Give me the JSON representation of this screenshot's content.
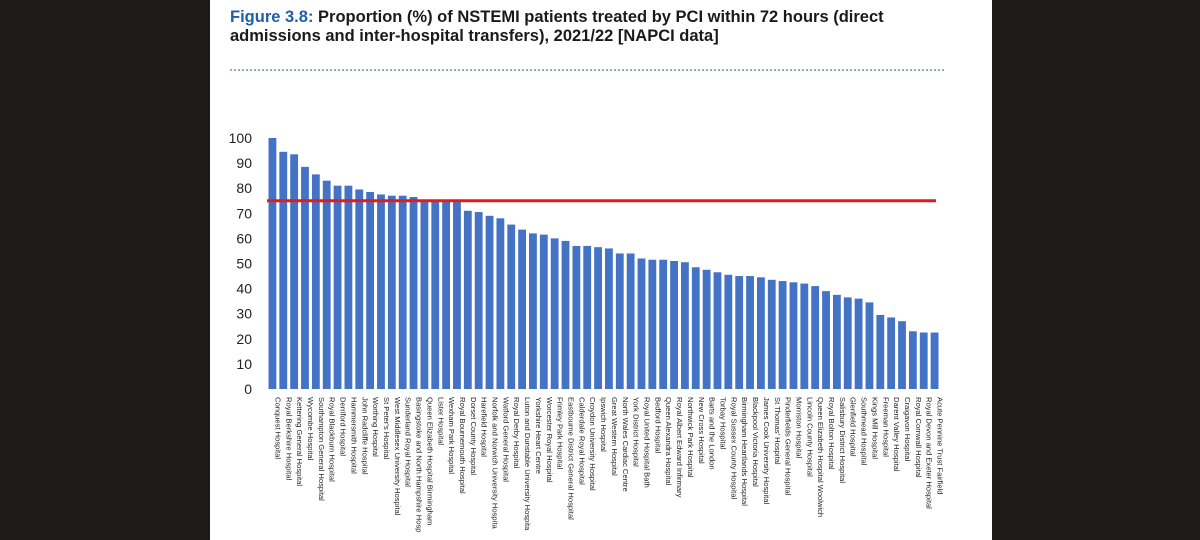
{
  "figure": {
    "number": "Figure 3.8:",
    "title": "Proportion (%) of NSTEMI patients treated by PCI within 72 hours (direct admissions and inter-hospital transfers), 2021/22 [NAPCI data]"
  },
  "chart_data": {
    "type": "bar",
    "title": "",
    "xlabel": "",
    "ylabel": "",
    "ylim": [
      0,
      100
    ],
    "yticks": [
      0,
      10,
      20,
      30,
      40,
      50,
      60,
      70,
      80,
      90,
      100
    ],
    "grid": false,
    "legend": "none",
    "bar_color": "#4472c4",
    "reference_line": {
      "value": 75,
      "color": "#e31b1b"
    },
    "categories": [
      "Conquest Hospital",
      "Royal Berkshire Hospital",
      "Kettering General Hospital",
      "Wycombe Hospital",
      "Southampton General Hospital",
      "Royal Blackburn Hospital",
      "Derriford Hospital",
      "Hammersmith Hospital",
      "John Radcliffe Hospital",
      "Worthing Hospital",
      "St Peter's Hospital",
      "West Middlesex University Hospital",
      "Sunderland Royal Hospital",
      "Basingstoke and North Hampshire Hosp",
      "Queen Elizabeth Hospital Birmingham",
      "Lister Hospital",
      "Wexham Park Hospital",
      "Royal Bournemouth Hospital",
      "Dorset County Hospital",
      "Harefield Hospital",
      "Norfolk and Norwich University Hospita",
      "Watford General Hospital",
      "Royal Derby Hospital",
      "Luton and Dunstable University Hospita",
      "Yorkshire Heart Centre",
      "Worcester Royal Hospital",
      "Frimley Park Hospital",
      "Eastbourne District General Hospital",
      "Calderdale Royal Hospital",
      "Croydon University Hospital",
      "Ipswich Hospital",
      "Great Western Hospital",
      "North Wales Cardiac Centre",
      "York District Hospital",
      "Royal United Hospital Bath",
      "Bedford Hospital",
      "Queen Alexandra Hospital",
      "Royal Albert Edward Infirmary",
      "Northwick Park Hospital",
      "New Cross Hospital",
      "Barts and the London",
      "Torbay Hospital",
      "Royal Sussex County Hospital",
      "Birmingham Heartlands Hospital",
      "Blackpool Victoria Hospital",
      "James Cook University Hospital",
      "St Thomas' Hospital",
      "Pinderfields General Hospital",
      "Morriston Hospital",
      "Lincoln County Hospital",
      "Queen Elizabeth Hospital Woolwich",
      "Royal Bolton Hospital",
      "Salisbury District Hospital",
      "Glenfield Hospital",
      "Southmead Hospital",
      "Kings Mill Hospital",
      "Freeman Hospital",
      "Darent Valley Hospital",
      "Craigavon Hospital",
      "Royal Cornwall Hospital",
      "Royal Devon and Exeter Hospital",
      "Acute Pennine Trust Fairfield"
    ],
    "values": [
      100,
      94.5,
      93.5,
      88.5,
      85.5,
      83,
      81,
      81,
      79.5,
      78.5,
      77.5,
      77,
      77,
      76.5,
      75,
      75,
      74.5,
      74.5,
      71,
      70.5,
      69,
      68,
      65.5,
      63.5,
      62,
      61.5,
      60,
      59,
      57,
      57,
      56.5,
      56,
      54,
      54,
      52,
      51.5,
      51.5,
      51,
      50.5,
      48.5,
      47.5,
      46.5,
      45.5,
      45,
      45,
      44.5,
      43.5,
      43,
      42.5,
      42,
      41,
      39,
      37.5,
      36.5,
      36,
      34.5,
      29.5,
      28.5,
      27,
      23,
      22.5,
      22.5
    ]
  }
}
